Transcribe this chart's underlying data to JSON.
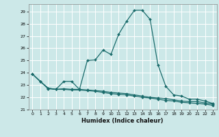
{
  "xlabel": "Humidex (Indice chaleur)",
  "bg_color": "#cce8e8",
  "grid_color": "#ffffff",
  "line_color": "#1a6b6b",
  "xlim": [
    -0.5,
    23.5
  ],
  "ylim": [
    21,
    29.6
  ],
  "xticks": [
    0,
    1,
    2,
    3,
    4,
    5,
    6,
    7,
    8,
    9,
    10,
    11,
    12,
    13,
    14,
    15,
    16,
    17,
    18,
    19,
    20,
    21,
    22,
    23
  ],
  "yticks": [
    21,
    22,
    23,
    24,
    25,
    26,
    27,
    28,
    29
  ],
  "series1_x": [
    0,
    1,
    2,
    3,
    4,
    5,
    6,
    7,
    8,
    9,
    10,
    11,
    12,
    13,
    14,
    15,
    16,
    17,
    18,
    19,
    20,
    21,
    22,
    23
  ],
  "series1_y": [
    23.9,
    23.3,
    22.7,
    22.65,
    23.3,
    23.3,
    22.65,
    25.0,
    25.05,
    25.85,
    25.5,
    27.15,
    28.2,
    29.1,
    29.1,
    28.35,
    24.65,
    22.9,
    22.2,
    22.1,
    21.85,
    21.85,
    21.7,
    21.5
  ],
  "series2_x": [
    0,
    1,
    2,
    3,
    4,
    5,
    6,
    7,
    8,
    9,
    10,
    11,
    12,
    13,
    14,
    15,
    16,
    17,
    18,
    19,
    20,
    21,
    22,
    23
  ],
  "series2_y": [
    23.9,
    23.3,
    22.75,
    22.65,
    22.7,
    22.65,
    22.65,
    22.6,
    22.55,
    22.5,
    22.4,
    22.35,
    22.3,
    22.2,
    22.1,
    22.0,
    21.95,
    21.9,
    21.8,
    21.7,
    21.65,
    21.65,
    21.55,
    21.45
  ],
  "series3_x": [
    0,
    1,
    2,
    3,
    4,
    5,
    6,
    7,
    8,
    9,
    10,
    11,
    12,
    13,
    14,
    15,
    16,
    17,
    18,
    19,
    20,
    21,
    22,
    23
  ],
  "series3_y": [
    23.9,
    23.3,
    22.75,
    22.65,
    22.65,
    22.6,
    22.6,
    22.55,
    22.5,
    22.4,
    22.3,
    22.25,
    22.2,
    22.1,
    22.0,
    21.95,
    21.85,
    21.75,
    21.7,
    21.6,
    21.55,
    21.5,
    21.45,
    21.35
  ]
}
